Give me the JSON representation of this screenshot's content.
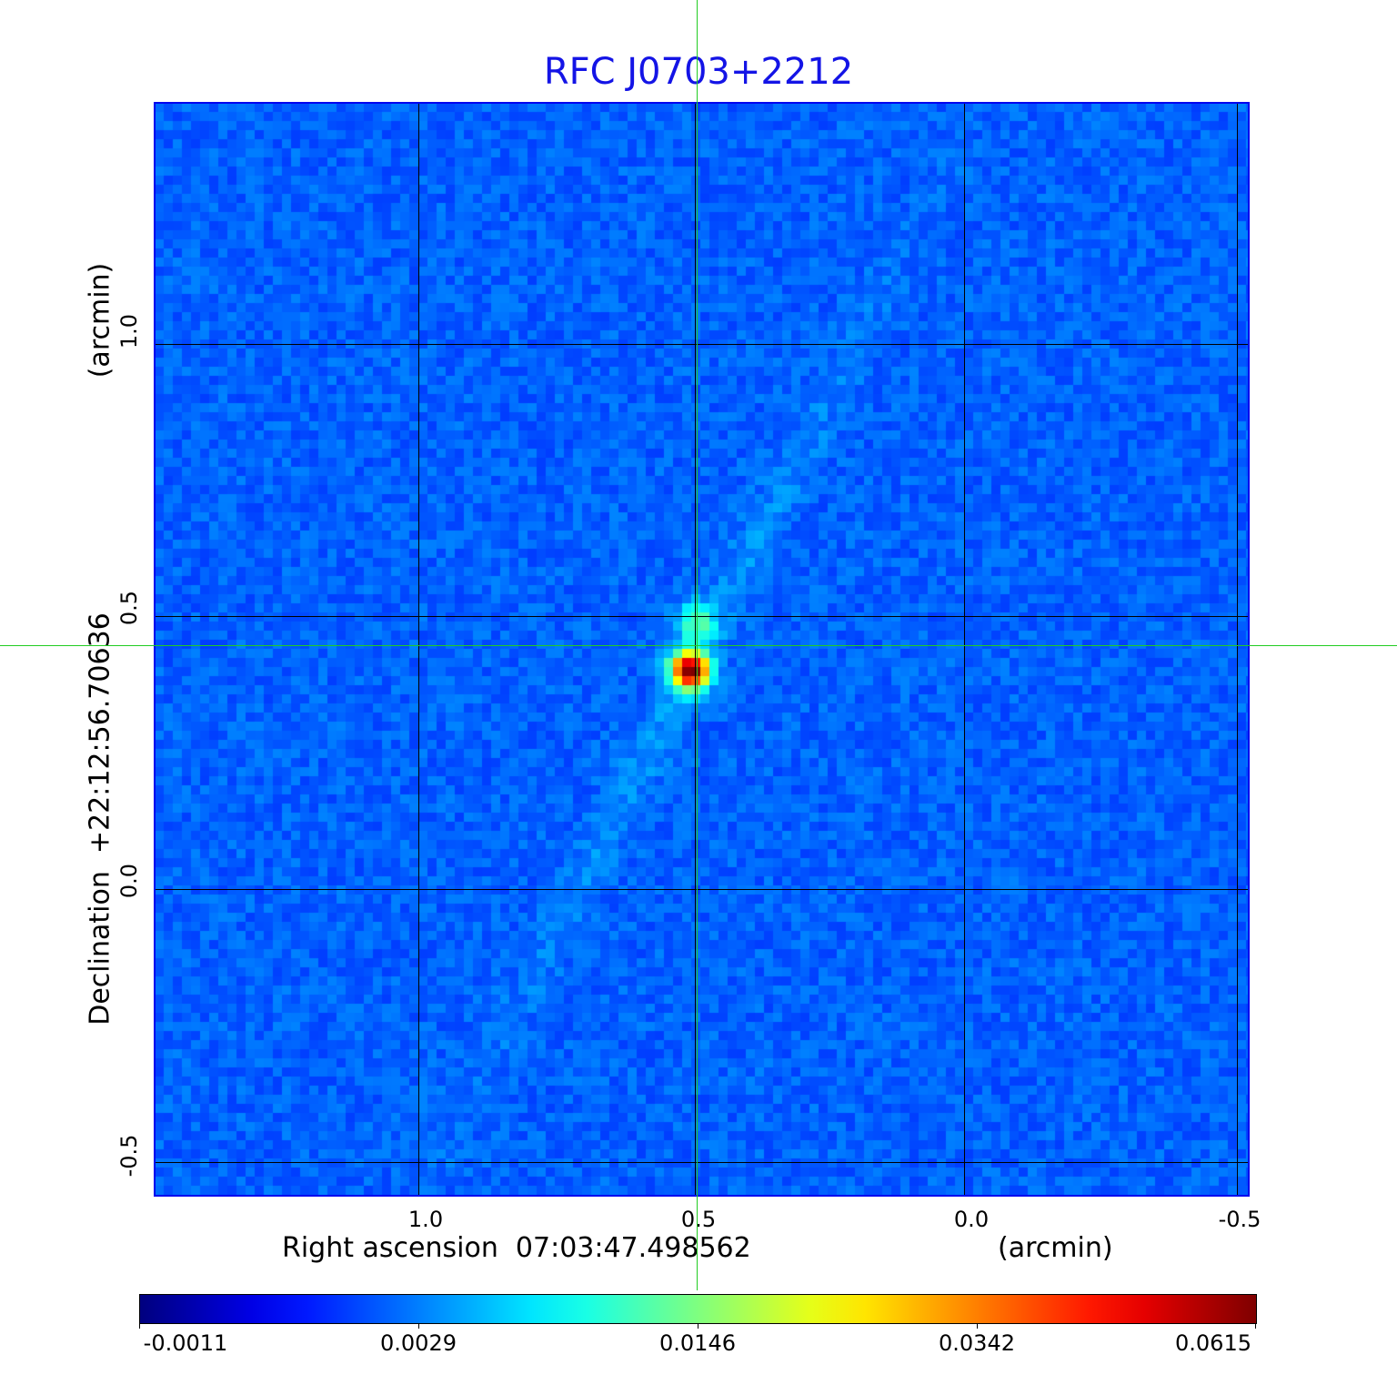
{
  "chart_data": {
    "type": "heatmap",
    "title": "RFC J0703+2212",
    "xlabel": "Right ascension  07:03:47.498562",
    "xunit": "(arcmin)",
    "ylabel": "Declination  +22:12:56.70636",
    "yunit": "(arcmin)",
    "x_ticks": [
      "1.0",
      "0.5",
      "0.0",
      "-0.5"
    ],
    "x_tick_values": [
      1.0,
      0.5,
      0.0,
      -0.5
    ],
    "y_ticks": [
      "1.0",
      "0.5",
      "0.0",
      "-0.5"
    ],
    "y_tick_values": [
      1.0,
      0.5,
      0.0,
      -0.5
    ],
    "xlim": [
      1.48,
      -0.5
    ],
    "ylim": [
      -0.56,
      1.44
    ],
    "grid": true,
    "colormap": "jet",
    "colorbar": {
      "ticks": [
        "-0.0011",
        "0.0029",
        "0.0146",
        "0.0342",
        "0.0615"
      ],
      "min": -0.0011,
      "max": 0.0615
    },
    "peak": {
      "x": 0.51,
      "y": 0.4,
      "value": 0.0615
    },
    "crosshair": {
      "x": 0.505,
      "y": 0.445
    },
    "crosshair_color": "#22cc22",
    "title_color": "#1414e6"
  }
}
